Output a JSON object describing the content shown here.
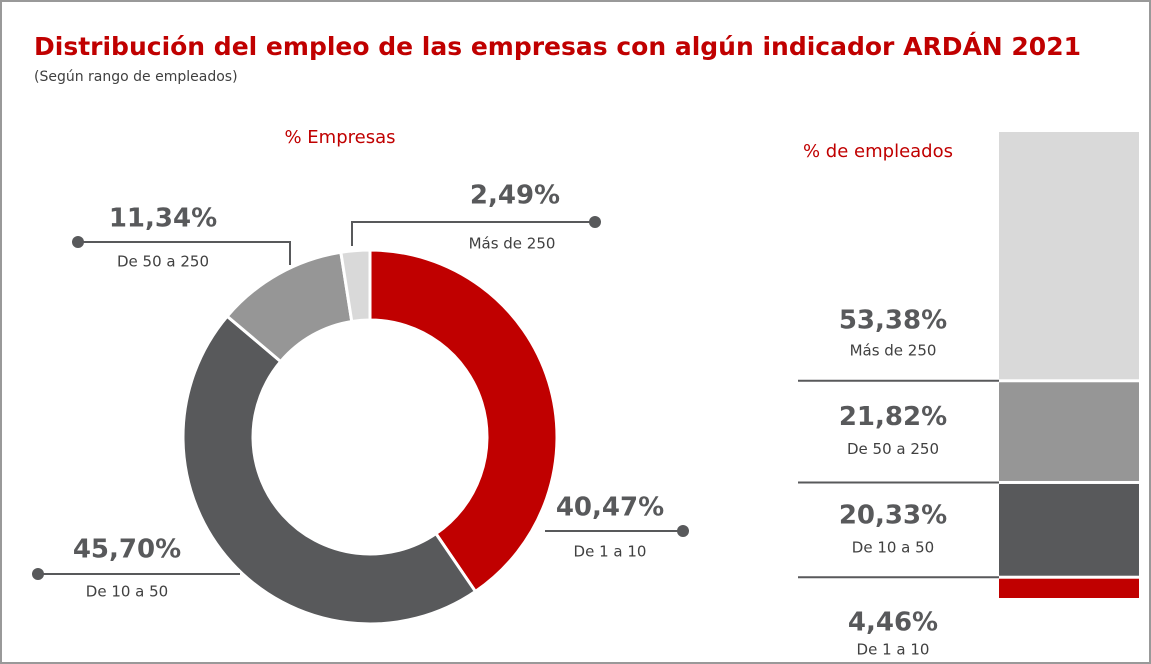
{
  "title": "Distribución del empleo de las empresas con algún indicador ARDÁN 2021",
  "subtitle": "(Según rango de empleados)",
  "chart_data": [
    {
      "type": "donut",
      "title": "% Empresas",
      "categories": [
        "De 1 a 10",
        "De 10 a 50",
        "De 50 a 250",
        "Más de 250"
      ],
      "values": [
        40.47,
        45.7,
        11.34,
        2.49
      ],
      "value_labels": [
        "40,47%",
        "45,70%",
        "11,34%",
        "2,49%"
      ],
      "colors": [
        "#c00000",
        "#58595b",
        "#969696",
        "#d9d9d9"
      ]
    },
    {
      "type": "stacked-bar",
      "title": "% de empleados",
      "series": [
        {
          "name": "De 1 a 10",
          "color": "#c00000",
          "values": [
            4.46
          ],
          "value_labels": [
            "4,46%"
          ]
        },
        {
          "name": "De 10 a 50",
          "color": "#58595b",
          "values": [
            20.33
          ],
          "value_labels": [
            "20,33%"
          ]
        },
        {
          "name": "De 50 a 250",
          "color": "#969696",
          "values": [
            21.82
          ],
          "value_labels": [
            "21,82%"
          ]
        },
        {
          "name": "Más de 250",
          "color": "#d9d9d9",
          "values": [
            53.38
          ],
          "value_labels": [
            "53,38%"
          ]
        }
      ]
    }
  ]
}
